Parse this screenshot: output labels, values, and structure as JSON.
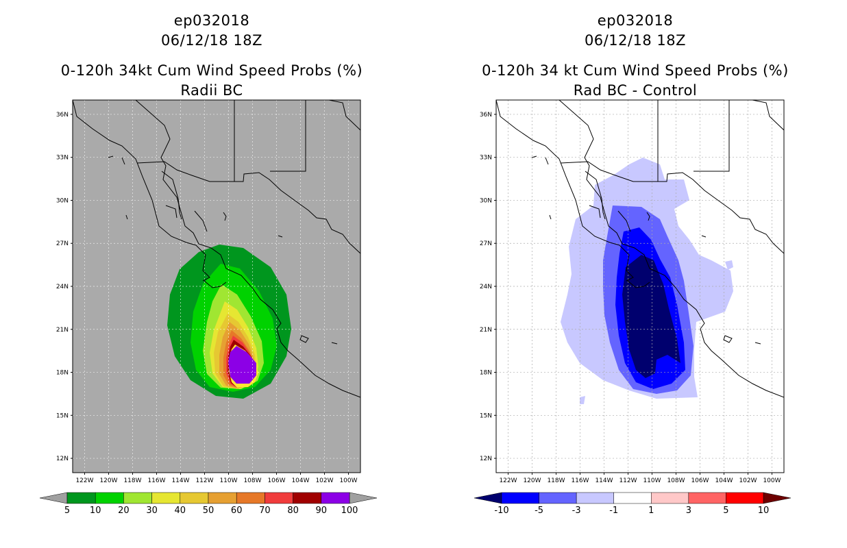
{
  "left_panel": {
    "storm": "ep032018",
    "time": "06/12/18 18Z",
    "title": "0-120h 34kt Cum Wind Speed Probs (%)",
    "subtitle": "Radii BC",
    "colorbar": {
      "labels": [
        "5",
        "10",
        "20",
        "30",
        "40",
        "50",
        "60",
        "70",
        "80",
        "90",
        "100"
      ],
      "colors": [
        "#00961e",
        "#00d200",
        "#a0e632",
        "#e6e632",
        "#e6c832",
        "#e6a032",
        "#e67828",
        "#f03c3c",
        "#a00000",
        "#8c00e6"
      ],
      "under_color": "#a0a0a0",
      "over_color": "#a0a0a0"
    }
  },
  "right_panel": {
    "storm": "ep032018",
    "time": "06/12/18 18Z",
    "title": "0-120h 34 kt Cum Wind Speed Probs (%)",
    "subtitle": "Rad BC - Control",
    "colorbar": {
      "labels": [
        "-10",
        "-5",
        "-3",
        "-1",
        "1",
        "3",
        "5",
        "10"
      ],
      "colors": [
        "#0000ff",
        "#6464ff",
        "#c8c8ff",
        "#ffffff",
        "#ffc8c8",
        "#ff6464",
        "#ff0000"
      ],
      "under_color": "#00006e",
      "over_color": "#6e0000"
    }
  },
  "map": {
    "lat_labels": [
      "36N",
      "33N",
      "30N",
      "27N",
      "24N",
      "21N",
      "18N",
      "15N",
      "12N"
    ],
    "lon_labels": [
      "122W",
      "120W",
      "118W",
      "116W",
      "114W",
      "112W",
      "110W",
      "108W",
      "106W",
      "104W",
      "102W",
      "100W"
    ],
    "background_left": "#aaaaaa",
    "background_right": "#ffffff"
  }
}
